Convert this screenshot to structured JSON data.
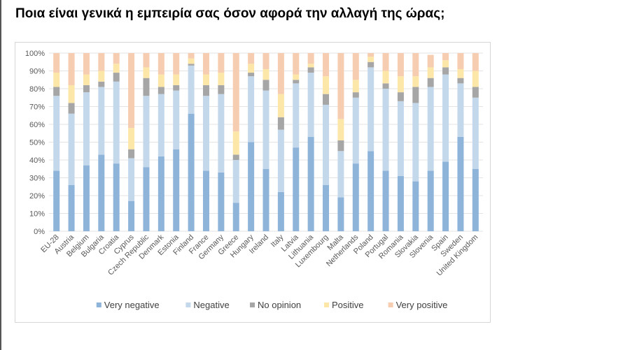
{
  "page": {
    "title": "Ποια είναι γενικά η εμπειρία σας όσον αφορά την αλλαγή της ώρας;"
  },
  "chart_data": {
    "type": "bar",
    "stacked": true,
    "percent_stacked": true,
    "categories": [
      "EU-28",
      "Austria",
      "Belgium",
      "Bulgaria",
      "Croatia",
      "Cyprus",
      "Czech Republic",
      "Denmark",
      "Estonia",
      "Finland",
      "France",
      "Germany",
      "Greece",
      "Hungary",
      "Ireland",
      "Italy",
      "Latvia",
      "Lithuania",
      "Luxembourg",
      "Malta",
      "Netherlands",
      "Poland",
      "Portugal",
      "Romania",
      "Slovakia",
      "Slovenia",
      "Spain",
      "Sweden",
      "United Kingdom"
    ],
    "ylim": [
      0,
      100
    ],
    "yticks": [
      0,
      10,
      20,
      30,
      40,
      50,
      60,
      70,
      80,
      90,
      100
    ],
    "ytick_suffix": "%",
    "grid": true,
    "legend_position": "bottom",
    "series": [
      {
        "name": "Very negative",
        "color": "#8eb4da",
        "values": [
          34,
          26,
          37,
          43,
          38,
          17,
          36,
          42,
          46,
          66,
          34,
          33,
          16,
          50,
          35,
          22,
          47,
          53,
          26,
          19,
          38,
          45,
          34,
          31,
          28,
          34,
          39,
          53,
          35
        ]
      },
      {
        "name": "Negative",
        "color": "#c4d8ec",
        "values": [
          42,
          40,
          41,
          38,
          46,
          24,
          40,
          35,
          33,
          27,
          42,
          44,
          24,
          37,
          44,
          35,
          36,
          36,
          45,
          26,
          37,
          47,
          46,
          42,
          44,
          47,
          49,
          30,
          40
        ]
      },
      {
        "name": "No opinion",
        "color": "#a6a6a6",
        "values": [
          5,
          6,
          4,
          3,
          5,
          5,
          10,
          4,
          3,
          1,
          6,
          5,
          3,
          2,
          6,
          7,
          2,
          3,
          6,
          6,
          3,
          3,
          3,
          5,
          9,
          5,
          4,
          3,
          6
        ]
      },
      {
        "name": "Positive",
        "color": "#fde7a8",
        "values": [
          8,
          10,
          6,
          6,
          5,
          12,
          6,
          7,
          6,
          3,
          6,
          7,
          13,
          5,
          6,
          13,
          3,
          2,
          10,
          12,
          7,
          3,
          7,
          9,
          6,
          6,
          4,
          5,
          9
        ]
      },
      {
        "name": "Very positive",
        "color": "#f6cdb0",
        "values": [
          11,
          18,
          12,
          10,
          6,
          42,
          8,
          12,
          12,
          3,
          12,
          11,
          44,
          6,
          9,
          23,
          12,
          6,
          13,
          37,
          15,
          2,
          10,
          13,
          13,
          7,
          4,
          9,
          10
        ]
      }
    ]
  }
}
